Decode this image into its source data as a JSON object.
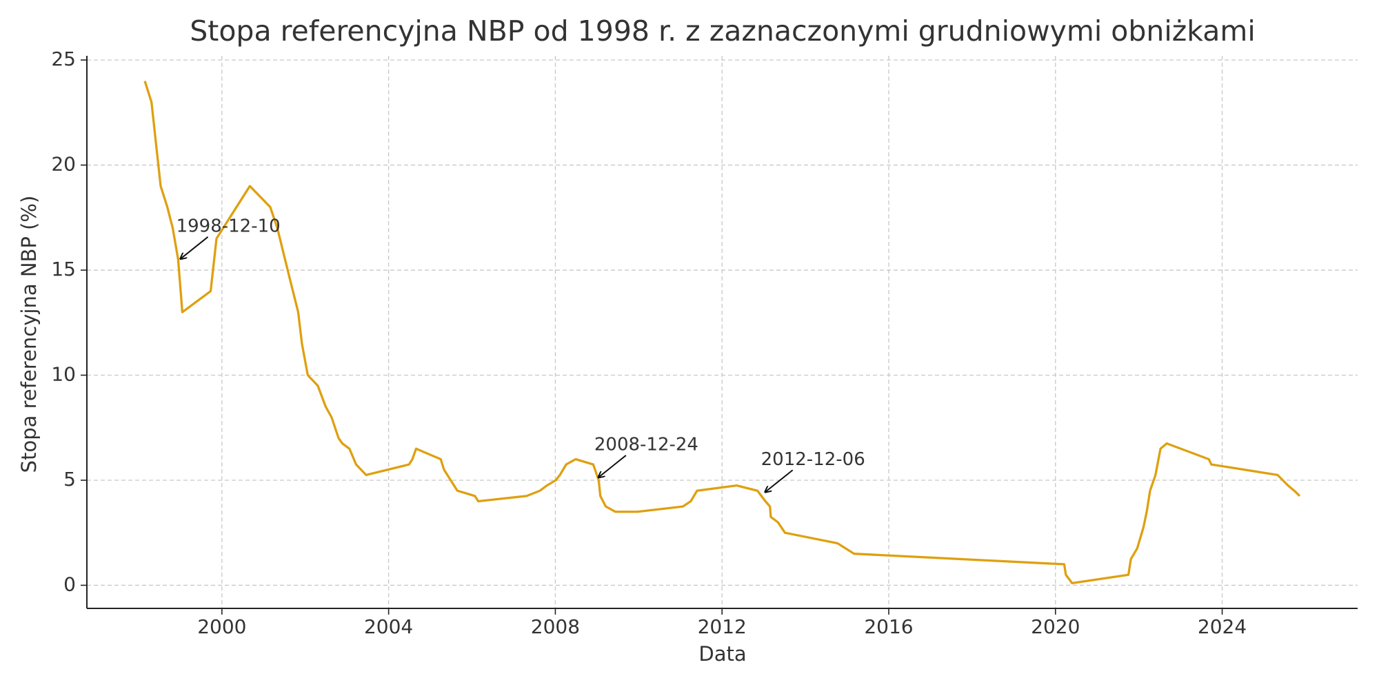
{
  "chart_data": {
    "type": "line",
    "title": "Stopa referencyjna NBP od 1998 r. z zaznaczonymi grudniowymi obniżkami",
    "x_label": "Data",
    "y_label": "Stopa referencyjna NBP (%)",
    "color": "#dfa00f",
    "grid": true,
    "x": [
      1998.15,
      1998.31,
      1998.53,
      1998.69,
      1998.82,
      1998.95,
      1999.05,
      1999.73,
      1999.87,
      2000.67,
      2001.16,
      2001.33,
      2001.64,
      2001.83,
      2001.92,
      2002.06,
      2002.3,
      2002.49,
      2002.63,
      2002.8,
      2002.89,
      2003.06,
      2003.22,
      2003.46,
      2004.49,
      2004.57,
      2004.66,
      2005.25,
      2005.33,
      2005.65,
      2006.07,
      2006.15,
      2007.31,
      2007.63,
      2007.8,
      2008.01,
      2008.11,
      2008.26,
      2008.49,
      2008.91,
      2009.04,
      2009.08,
      2009.21,
      2009.44,
      2009.97,
      2011.06,
      2011.25,
      2011.4,
      2012.35,
      2012.85,
      2013.04,
      2013.15,
      2013.17,
      2013.34,
      2013.51,
      2014.77,
      2015.17,
      2020.21,
      2020.25,
      2020.4,
      2021.75,
      2021.81,
      2021.96,
      2022.11,
      2022.19,
      2022.27,
      2022.4,
      2022.52,
      2022.67,
      2023.68,
      2023.74,
      2025.33,
      2025.58,
      2025.73,
      2025.86
    ],
    "values": [
      24,
      23,
      19,
      18,
      17,
      15.5,
      13,
      14,
      16.5,
      19,
      18,
      17,
      14.5,
      13,
      11.5,
      10,
      9.5,
      8.5,
      8,
      7,
      6.75,
      6.5,
      5.75,
      5.25,
      5.75,
      6,
      6.5,
      6,
      5.5,
      4.5,
      4.25,
      4,
      4.25,
      4.5,
      4.75,
      5,
      5.25,
      5.75,
      6,
      5.75,
      5,
      4.25,
      3.75,
      3.5,
      3.5,
      3.75,
      4,
      4.5,
      4.75,
      4.5,
      4,
      3.75,
      3.25,
      3,
      2.5,
      2,
      1.5,
      1,
      0.5,
      0.1,
      0.5,
      1.25,
      1.75,
      2.75,
      3.5,
      4.5,
      5.25,
      6.5,
      6.75,
      6,
      5.75,
      5.25,
      4.75,
      4.5,
      4.25
    ],
    "xlim": [
      1996.76,
      2027.25
    ],
    "ylim": [
      -1.1,
      25.2
    ],
    "xticks": [
      2000,
      2004,
      2008,
      2012,
      2016,
      2020,
      2024
    ],
    "yticks": [
      0,
      5,
      10,
      15,
      20,
      25
    ],
    "annotations": [
      {
        "text": "1998-12-10",
        "x": 1998.97,
        "y": 15.5
      },
      {
        "text": "2008-12-24",
        "x": 2009.0,
        "y": 5.1
      },
      {
        "text": "2012-12-06",
        "x": 2013.0,
        "y": 4.4
      }
    ]
  }
}
